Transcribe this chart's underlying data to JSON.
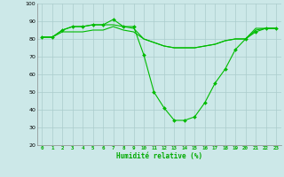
{
  "x": [
    0,
    1,
    2,
    3,
    4,
    5,
    6,
    7,
    8,
    9,
    10,
    11,
    12,
    13,
    14,
    15,
    16,
    17,
    18,
    19,
    20,
    21,
    22,
    23
  ],
  "line1": [
    81,
    81,
    85,
    87,
    87,
    88,
    88,
    91,
    87,
    87,
    71,
    50,
    41,
    34,
    34,
    36,
    44,
    55,
    63,
    74,
    80,
    84,
    86,
    86
  ],
  "line2": [
    81,
    81,
    85,
    87,
    87,
    88,
    88,
    88,
    87,
    86,
    80,
    78,
    76,
    75,
    75,
    75,
    76,
    77,
    79,
    80,
    80,
    86,
    86,
    86
  ],
  "line3": [
    81,
    81,
    84,
    84,
    84,
    85,
    85,
    87,
    85,
    84,
    80,
    78,
    76,
    75,
    75,
    75,
    76,
    77,
    79,
    80,
    80,
    85,
    86,
    86
  ],
  "bg_color": "#cce8e8",
  "grid_color": "#aacccc",
  "line_color": "#00bb00",
  "xlabel": "Humidité relative (%)",
  "xlabel_color": "#00aa00",
  "ylim": [
    20,
    100
  ],
  "xlim": [
    -0.5,
    23.5
  ],
  "yticks": [
    20,
    30,
    40,
    50,
    60,
    70,
    80,
    90,
    100
  ],
  "xticks": [
    0,
    1,
    2,
    3,
    4,
    5,
    6,
    7,
    8,
    9,
    10,
    11,
    12,
    13,
    14,
    15,
    16,
    17,
    18,
    19,
    20,
    21,
    22,
    23
  ]
}
